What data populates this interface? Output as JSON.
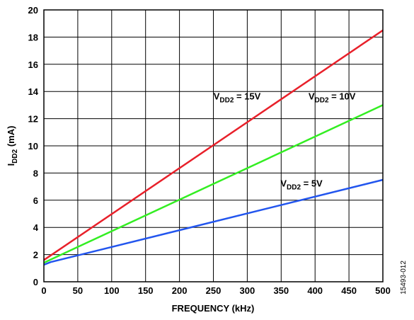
{
  "chart_data": {
    "type": "line",
    "title": "",
    "xlabel": "FREQUENCY (kHz)",
    "ylabel": {
      "main": "I",
      "sub": "DD2",
      "unit": " (mA)"
    },
    "xlim": [
      0,
      500
    ],
    "ylim": [
      0,
      20
    ],
    "xticks": [
      0,
      50,
      100,
      150,
      200,
      250,
      300,
      350,
      400,
      450,
      500
    ],
    "yticks": [
      0,
      2,
      4,
      6,
      8,
      10,
      12,
      14,
      16,
      18,
      20
    ],
    "grid": true,
    "series": [
      {
        "label": {
          "main": "V",
          "sub": "DD2",
          "rest": " = 15V"
        },
        "color": "#e8202a",
        "x": [
          0,
          500
        ],
        "y": [
          1.6,
          18.5
        ],
        "label_at": [
          285,
          13.4
        ]
      },
      {
        "label": {
          "main": "V",
          "sub": "DD2",
          "rest": " = 10V"
        },
        "color": "#33ee22",
        "x": [
          0,
          500
        ],
        "y": [
          1.4,
          13.0
        ],
        "label_at": [
          425,
          13.4
        ]
      },
      {
        "label": {
          "main": "V",
          "sub": "DD2",
          "rest": " = 5V"
        },
        "color": "#2255ee",
        "x": [
          0,
          10,
          500
        ],
        "y": [
          1.25,
          1.45,
          7.5
        ],
        "label_at": [
          380,
          7.0
        ]
      }
    ],
    "figure_id": "15493-012"
  }
}
